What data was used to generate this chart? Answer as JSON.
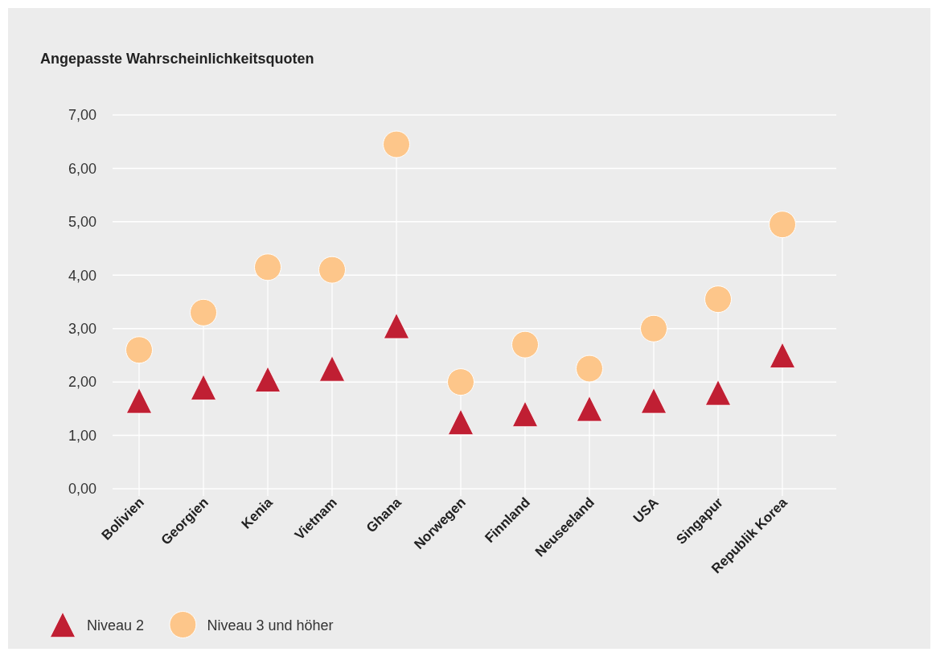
{
  "chart_data": {
    "type": "scatter",
    "title": "Angepasste Wahrscheinlichkeitsquoten",
    "categories": [
      "Bolivien",
      "Georgien",
      "Kenia",
      "Vietnam",
      "Ghana",
      "Norwegen",
      "Finnland",
      "Neuseeland",
      "USA",
      "Singapur",
      "Republik Korea"
    ],
    "series": [
      {
        "name": "Niveau 2",
        "marker": "triangle",
        "color": "#c01f33",
        "values": [
          1.65,
          1.9,
          2.05,
          2.25,
          3.05,
          1.25,
          1.4,
          1.5,
          1.65,
          1.8,
          2.5
        ]
      },
      {
        "name": "Niveau 3 und höher",
        "type": "lollipop",
        "marker": "circle",
        "color": "#fdc68a",
        "values": [
          2.6,
          3.3,
          4.15,
          4.1,
          6.45,
          2.0,
          2.7,
          2.25,
          3.0,
          3.55,
          4.95
        ]
      }
    ],
    "ylim": [
      0,
      7
    ],
    "yticks": [
      {
        "value": 0,
        "label": "0,00"
      },
      {
        "value": 1,
        "label": "1,00"
      },
      {
        "value": 2,
        "label": "2,00"
      },
      {
        "value": 3,
        "label": "3,00"
      },
      {
        "value": 4,
        "label": "4,00"
      },
      {
        "value": 5,
        "label": "5,00"
      },
      {
        "value": 6,
        "label": "6,00"
      },
      {
        "value": 7,
        "label": "7,00"
      }
    ],
    "grid": "y",
    "legend": "bottom left"
  }
}
